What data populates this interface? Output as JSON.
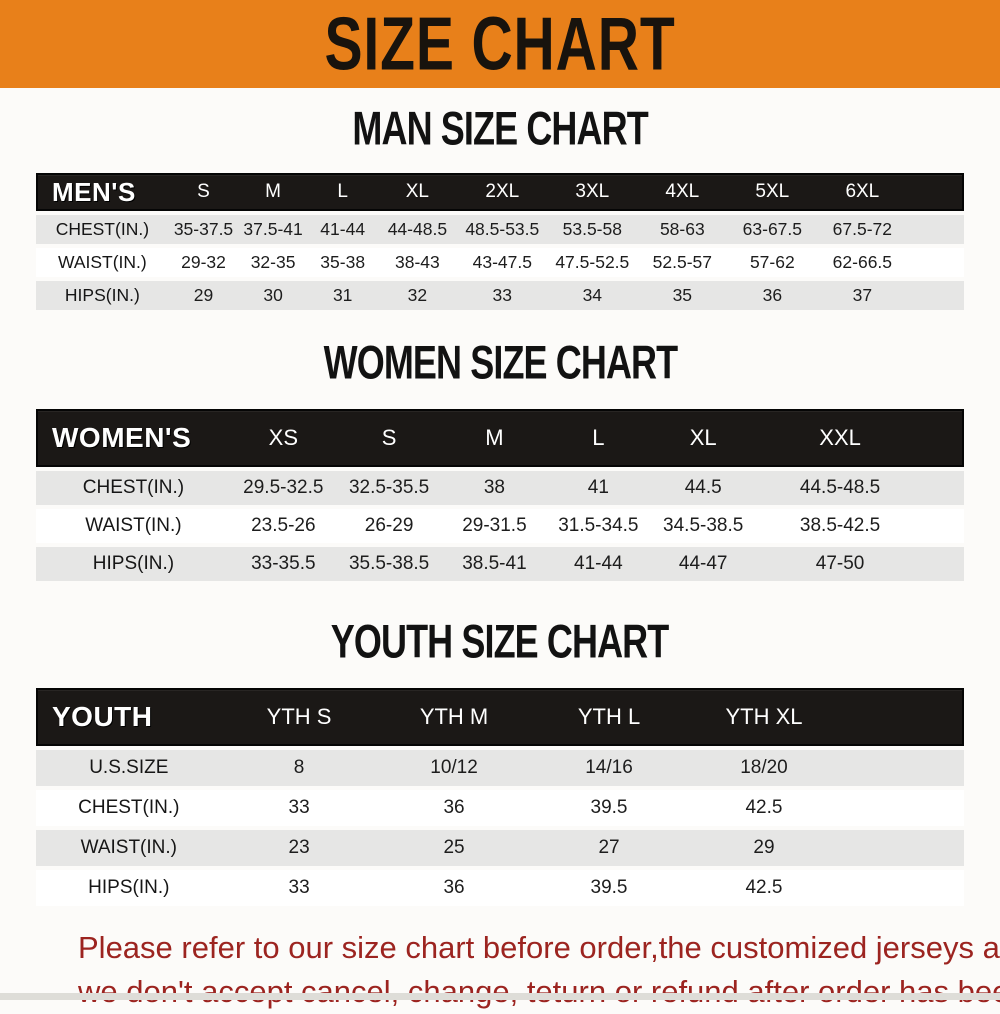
{
  "banner": {
    "title": "SIZE CHART"
  },
  "colors": {
    "banner_bg": "#E8801A",
    "header_bar": "#1B1816",
    "row_alt": "#E6E6E5",
    "footer_text": "#9C2420"
  },
  "sections": [
    {
      "id": "men",
      "heading": "MAN SIZE CHART",
      "group_label": "MEN'S",
      "columns": [
        "S",
        "M",
        "L",
        "XL",
        "2XL",
        "3XL",
        "4XL",
        "5XL",
        "6XL"
      ],
      "rows": [
        {
          "label": "CHEST(IN.)",
          "values": [
            "35-37.5",
            "37.5-41",
            "41-44",
            "44-48.5",
            "48.5-53.5",
            "53.5-58",
            "58-63",
            "63-67.5",
            "67.5-72"
          ]
        },
        {
          "label": "WAIST(IN.)",
          "values": [
            "29-32",
            "32-35",
            "35-38",
            "38-43",
            "43-47.5",
            "47.5-52.5",
            "52.5-57",
            "57-62",
            "62-66.5"
          ]
        },
        {
          "label": "HIPS(IN.)",
          "values": [
            "29",
            "30",
            "31",
            "32",
            "33",
            "34",
            "35",
            "36",
            "37"
          ]
        }
      ]
    },
    {
      "id": "women",
      "heading": "WOMEN SIZE CHART",
      "group_label": "WOMEN'S",
      "columns": [
        "XS",
        "S",
        "M",
        "L",
        "XL",
        "XXL"
      ],
      "rows": [
        {
          "label": "CHEST(IN.)",
          "values": [
            "29.5-32.5",
            "32.5-35.5",
            "38",
            "41",
            "44.5",
            "44.5-48.5"
          ]
        },
        {
          "label": "WAIST(IN.)",
          "values": [
            "23.5-26",
            "26-29",
            "29-31.5",
            "31.5-34.5",
            "34.5-38.5",
            "38.5-42.5"
          ]
        },
        {
          "label": "HIPS(IN.)",
          "values": [
            "33-35.5",
            "35.5-38.5",
            "38.5-41",
            "41-44",
            "44-47",
            "47-50"
          ]
        }
      ]
    },
    {
      "id": "youth",
      "heading": "YOUTH SIZE CHART",
      "group_label": "YOUTH",
      "columns": [
        "YTH S",
        "YTH M",
        "YTH L",
        "YTH XL"
      ],
      "rows": [
        {
          "label": "U.S.SIZE",
          "values": [
            "8",
            "10/12",
            "14/16",
            "18/20"
          ]
        },
        {
          "label": "CHEST(IN.)",
          "values": [
            "33",
            "36",
            "39.5",
            "42.5"
          ]
        },
        {
          "label": "WAIST(IN.)",
          "values": [
            "23",
            "25",
            "27",
            "29"
          ]
        },
        {
          "label": "HIPS(IN.)",
          "values": [
            "33",
            "36",
            "39.5",
            "42.5"
          ]
        }
      ]
    }
  ],
  "footer": {
    "line1": "Please refer to our size chart before order,the customized jerseys are special products,",
    "line2": "we don't accept cancel, change, teturn or refund after order has been placed!"
  }
}
